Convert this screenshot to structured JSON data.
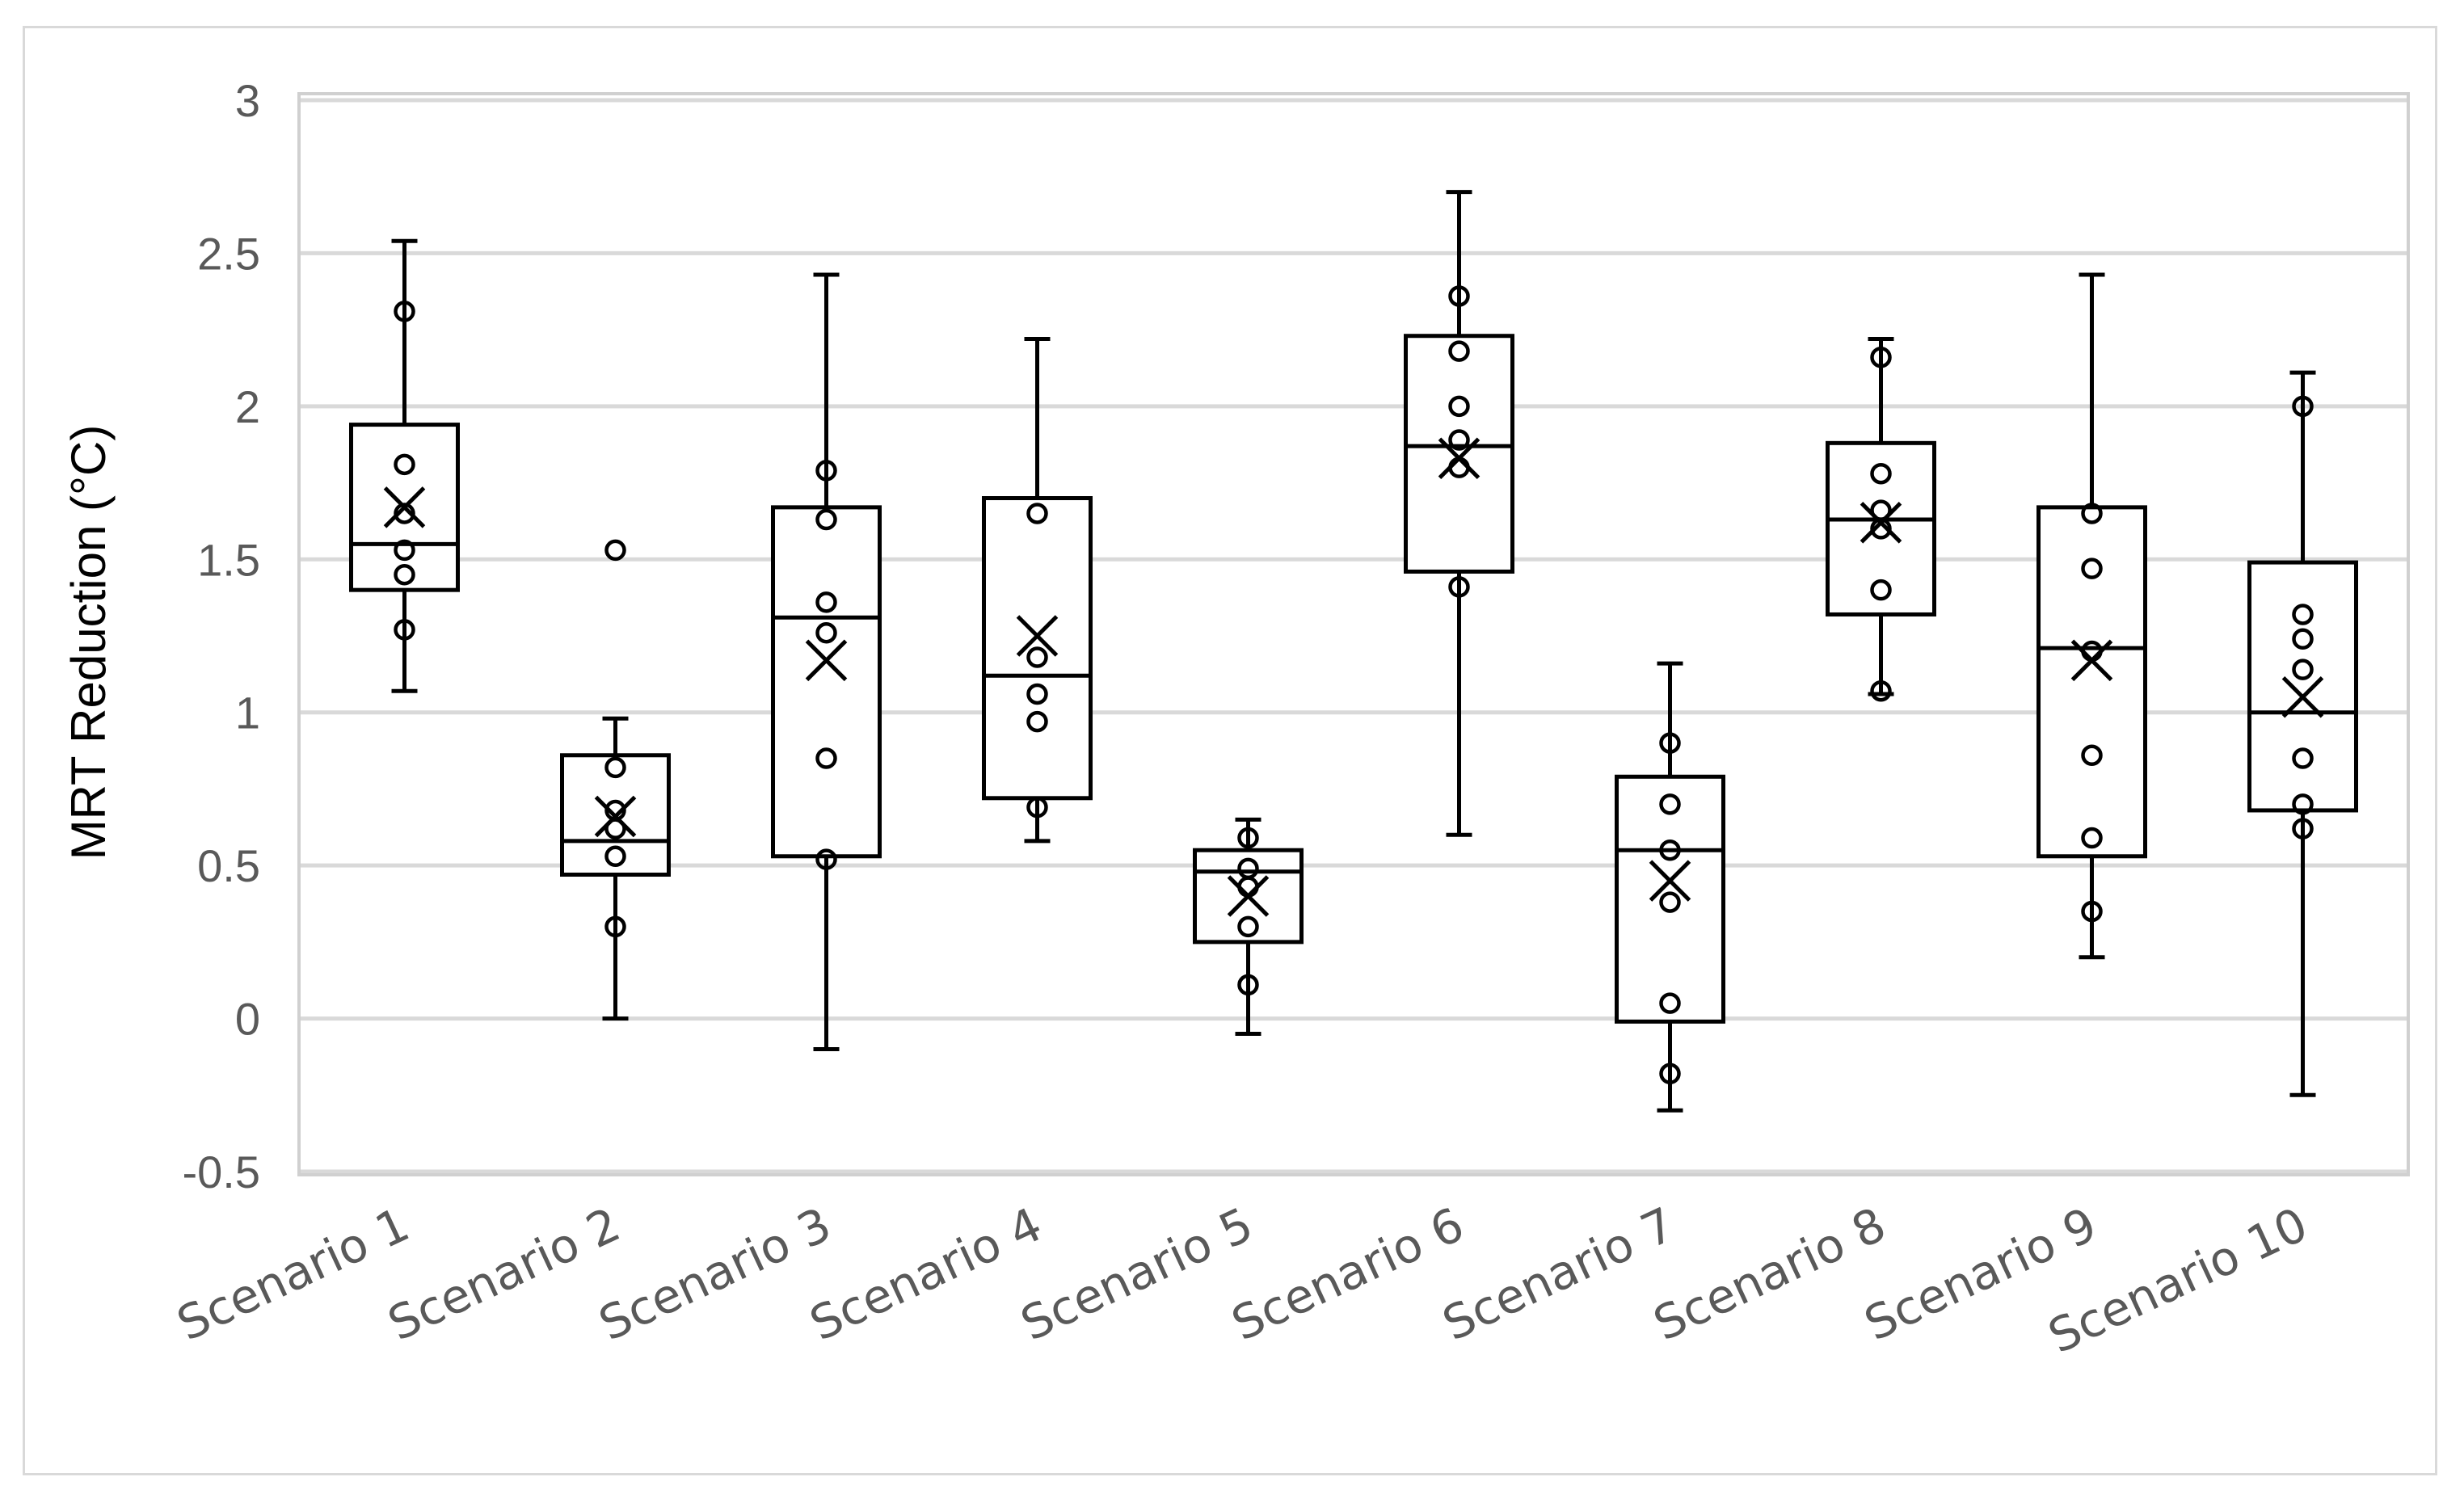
{
  "chart_data": {
    "type": "box",
    "title": "",
    "xlabel": "",
    "ylabel": "MRT Reduction (°C)",
    "ylim": [
      -0.5,
      3
    ],
    "yticks": [
      3,
      2.5,
      2,
      1.5,
      1,
      0.5,
      0,
      -0.5
    ],
    "ytick_labels": [
      "3",
      "2.5",
      "2",
      "1.5",
      "1",
      "0.5",
      "0",
      "-0.5"
    ],
    "grid": true,
    "legend": "none",
    "colors": {
      "box": "#000000",
      "grid": "#d9d9d9",
      "axis": "#bfbfbf",
      "text": "#595959"
    },
    "categories": [
      "Scenario 1",
      "Scenario 2",
      "Scenario 3",
      "Scenario 4",
      "Scenario 5",
      "Scenario 6",
      "Scenario 7",
      "Scenario 8",
      "Scenario 9",
      "Scenario 10"
    ],
    "boxes": [
      {
        "whisker_low": 1.07,
        "q1": 1.4,
        "median": 1.55,
        "q3": 1.94,
        "whisker_high": 2.54,
        "mean": 1.67,
        "points": [
          2.31,
          1.81,
          1.65,
          1.53,
          1.45,
          1.27
        ]
      },
      {
        "whisker_low": 0.0,
        "q1": 0.47,
        "median": 0.58,
        "q3": 0.86,
        "whisker_high": 0.98,
        "mean": 0.66,
        "points": [
          1.53,
          0.82,
          0.68,
          0.62,
          0.53,
          0.3
        ]
      },
      {
        "whisker_low": -0.1,
        "q1": 0.53,
        "median": 1.31,
        "q3": 1.67,
        "whisker_high": 2.43,
        "mean": 1.17,
        "points": [
          1.79,
          1.63,
          1.36,
          1.26,
          0.85,
          0.52
        ]
      },
      {
        "whisker_low": 0.58,
        "q1": 0.72,
        "median": 1.12,
        "q3": 1.7,
        "whisker_high": 2.22,
        "mean": 1.25,
        "points": [
          1.65,
          1.18,
          1.06,
          0.97,
          0.69
        ]
      },
      {
        "whisker_low": -0.05,
        "q1": 0.25,
        "median": 0.48,
        "q3": 0.55,
        "whisker_high": 0.65,
        "mean": 0.4,
        "points": [
          0.59,
          0.49,
          0.43,
          0.3,
          0.11
        ]
      },
      {
        "whisker_low": 0.6,
        "q1": 1.46,
        "median": 1.87,
        "q3": 2.23,
        "whisker_high": 2.7,
        "mean": 1.83,
        "points": [
          2.36,
          2.18,
          2.0,
          1.89,
          1.8,
          1.41
        ]
      },
      {
        "whisker_low": -0.3,
        "q1": -0.01,
        "median": 0.55,
        "q3": 0.79,
        "whisker_high": 1.16,
        "mean": 0.45,
        "points": [
          0.9,
          0.7,
          0.55,
          0.38,
          0.05,
          -0.18
        ]
      },
      {
        "whisker_low": 1.06,
        "q1": 1.32,
        "median": 1.63,
        "q3": 1.88,
        "whisker_high": 2.22,
        "mean": 1.62,
        "points": [
          2.16,
          1.78,
          1.66,
          1.6,
          1.4,
          1.07
        ]
      },
      {
        "whisker_low": 0.2,
        "q1": 0.53,
        "median": 1.21,
        "q3": 1.67,
        "whisker_high": 2.43,
        "mean": 1.17,
        "points": [
          1.65,
          1.47,
          1.2,
          0.86,
          0.59,
          0.35
        ]
      },
      {
        "whisker_low": -0.25,
        "q1": 0.68,
        "median": 1.0,
        "q3": 1.49,
        "whisker_high": 2.11,
        "mean": 1.05,
        "points": [
          2.0,
          1.32,
          1.24,
          1.14,
          0.85,
          0.7,
          0.62
        ]
      }
    ]
  }
}
